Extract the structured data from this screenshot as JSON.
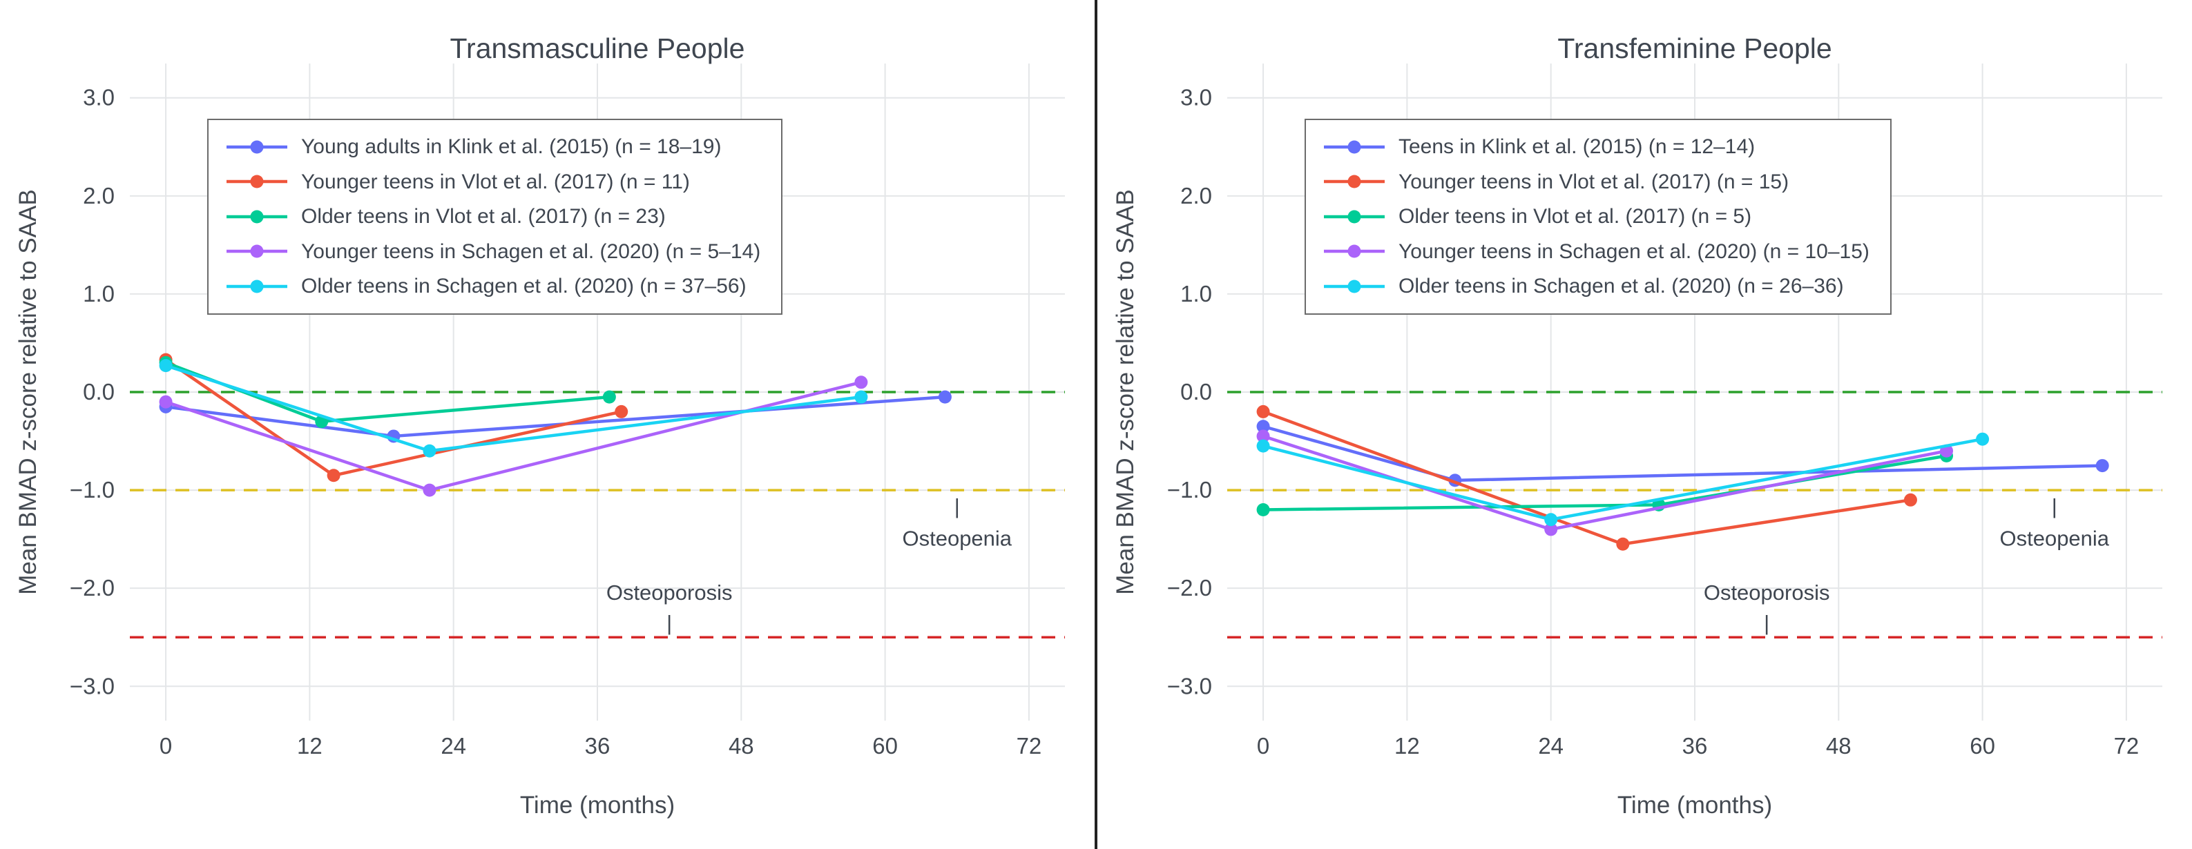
{
  "figure": {
    "divider_color": "#222222",
    "background": "#ffffff",
    "grid_color": "#e4e6e8"
  },
  "chart_data": [
    {
      "type": "line",
      "title": "Transmasculine People",
      "xlabel": "Time (months)",
      "ylabel": "Mean BMAD z-score relative to SAAB",
      "xlim": [
        -3,
        75
      ],
      "ylim": [
        -3.35,
        3.35
      ],
      "grid": true,
      "xticks": [
        0,
        12,
        24,
        36,
        48,
        60,
        72
      ],
      "ytick_values": [
        3,
        2,
        1,
        0,
        -1,
        -2,
        -3
      ],
      "ytick_labels": [
        "3.0",
        "2.0",
        "1.0",
        "0.0",
        "−1.0",
        "−2.0",
        "−3.0"
      ],
      "legend_position": "top-left",
      "reference_lines": [
        {
          "name": "zero-line",
          "y": 0.0,
          "color": "#2ca02c"
        },
        {
          "name": "osteopenia-threshold",
          "y": -1.0,
          "color": "#ddc022"
        },
        {
          "name": "osteoporosis-threshold",
          "y": -2.5,
          "color": "#d62728"
        }
      ],
      "annotations": [
        {
          "name": "osteoporosis-label",
          "text": "Osteoporosis",
          "x": 42,
          "y": -2.06
        },
        {
          "name": "osteoporosis-tick",
          "text": "|",
          "x": 42,
          "y": -2.37
        },
        {
          "name": "osteopenia-label",
          "text": "Osteopenia",
          "x": 66,
          "y": -1.51
        },
        {
          "name": "osteopenia-tick",
          "text": "|",
          "x": 66,
          "y": -1.18
        }
      ],
      "series": [
        {
          "name": "Young adults in Klink et al. (2015) (n = 18–19)",
          "color": "#636EFA",
          "x": [
            0,
            19,
            65
          ],
          "y": [
            -0.15,
            -0.45,
            -0.05
          ]
        },
        {
          "name": "Younger teens in Vlot et al. (2017) (n = 11)",
          "color": "#EF553B",
          "x": [
            0,
            14,
            38
          ],
          "y": [
            0.33,
            -0.85,
            -0.2
          ]
        },
        {
          "name": "Older teens in Vlot et al. (2017) (n = 23)",
          "color": "#00CC96",
          "x": [
            0,
            13,
            37
          ],
          "y": [
            0.3,
            -0.3,
            -0.05
          ]
        },
        {
          "name": "Younger teens in Schagen et al. (2020) (n = 5–14)",
          "color": "#AB63FA",
          "x": [
            0,
            22,
            58
          ],
          "y": [
            -0.1,
            -1.0,
            0.1
          ]
        },
        {
          "name": "Older teens in Schagen et al. (2020) (n = 37–56)",
          "color": "#19D3F3",
          "x": [
            0,
            22,
            58
          ],
          "y": [
            0.27,
            -0.6,
            -0.05
          ]
        }
      ]
    },
    {
      "type": "line",
      "title": "Transfeminine People",
      "xlabel": "Time (months)",
      "ylabel": "Mean BMAD z-score relative to SAAB",
      "xlim": [
        -3,
        75
      ],
      "ylim": [
        -3.35,
        3.35
      ],
      "grid": true,
      "xticks": [
        0,
        12,
        24,
        36,
        48,
        60,
        72
      ],
      "ytick_values": [
        3,
        2,
        1,
        0,
        -1,
        -2,
        -3
      ],
      "ytick_labels": [
        "3.0",
        "2.0",
        "1.0",
        "0.0",
        "−1.0",
        "−2.0",
        "−3.0"
      ],
      "legend_position": "top-left",
      "reference_lines": [
        {
          "name": "zero-line",
          "y": 0.0,
          "color": "#2ca02c"
        },
        {
          "name": "osteopenia-threshold",
          "y": -1.0,
          "color": "#ddc022"
        },
        {
          "name": "osteoporosis-threshold",
          "y": -2.5,
          "color": "#d62728"
        }
      ],
      "annotations": [
        {
          "name": "osteoporosis-label",
          "text": "Osteoporosis",
          "x": 42,
          "y": -2.06
        },
        {
          "name": "osteoporosis-tick",
          "text": "|",
          "x": 42,
          "y": -2.37
        },
        {
          "name": "osteopenia-label",
          "text": "Osteopenia",
          "x": 66,
          "y": -1.51
        },
        {
          "name": "osteopenia-tick",
          "text": "|",
          "x": 66,
          "y": -1.18
        }
      ],
      "series": [
        {
          "name": "Teens in Klink et al. (2015) (n = 12–14)",
          "color": "#636EFA",
          "x": [
            0,
            16,
            70
          ],
          "y": [
            -0.35,
            -0.9,
            -0.75
          ]
        },
        {
          "name": "Younger teens in Vlot et al. (2017) (n = 15)",
          "color": "#EF553B",
          "x": [
            0,
            30,
            54
          ],
          "y": [
            -0.2,
            -1.55,
            -1.1
          ]
        },
        {
          "name": "Older teens in Vlot et al. (2017) (n = 5)",
          "color": "#00CC96",
          "x": [
            0,
            33,
            57
          ],
          "y": [
            -1.2,
            -1.15,
            -0.65
          ]
        },
        {
          "name": "Younger teens in Schagen et al. (2020) (n = 10–15)",
          "color": "#AB63FA",
          "x": [
            0,
            24,
            57
          ],
          "y": [
            -0.45,
            -1.4,
            -0.6
          ]
        },
        {
          "name": "Older teens in Schagen et al. (2020) (n = 26–36)",
          "color": "#19D3F3",
          "x": [
            0,
            24,
            60
          ],
          "y": [
            -0.55,
            -1.3,
            -0.48
          ]
        }
      ]
    }
  ]
}
